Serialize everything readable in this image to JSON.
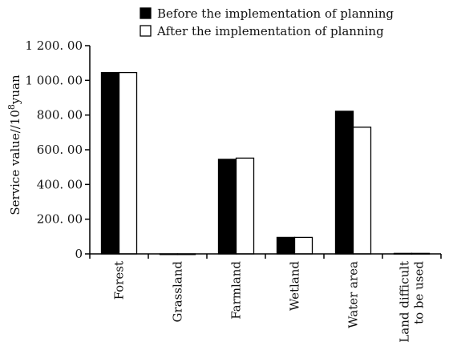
{
  "chart_data": {
    "type": "bar",
    "title": "",
    "xlabel": "",
    "ylabel": "Service value/10^8 yuan",
    "ylabel_parts": {
      "prefix": "Service value",
      "sep": "//",
      "base": "10",
      "exp": "8",
      "unit": "yuan"
    },
    "categories": [
      "Forest",
      "Grassland",
      "Farmland",
      "Wetland",
      "Water area",
      "Land difficult to be used"
    ],
    "category_lines": [
      [
        "Forest"
      ],
      [
        "Grassland"
      ],
      [
        "Farmland"
      ],
      [
        "Wetland"
      ],
      [
        "Water area"
      ],
      [
        "Land difficult",
        "to be used"
      ]
    ],
    "series": [
      {
        "name": "Before the implementation of planning",
        "color": "#000000",
        "values": [
          1045,
          0,
          545,
          95,
          822,
          3
        ]
      },
      {
        "name": "After the implementation of planning",
        "color": "#ffffff",
        "values": [
          1045,
          0,
          552,
          95,
          730,
          3
        ]
      }
    ],
    "ylim": [
      0,
      1200
    ],
    "yticks": [
      0,
      200,
      400,
      600,
      800,
      1000,
      1200
    ],
    "ytick_labels": [
      "0",
      "200. 00",
      "400. 00",
      "600. 00",
      "800. 00",
      "1 000. 00",
      "1 200. 00"
    ],
    "grid": false,
    "legend_position": "top"
  }
}
